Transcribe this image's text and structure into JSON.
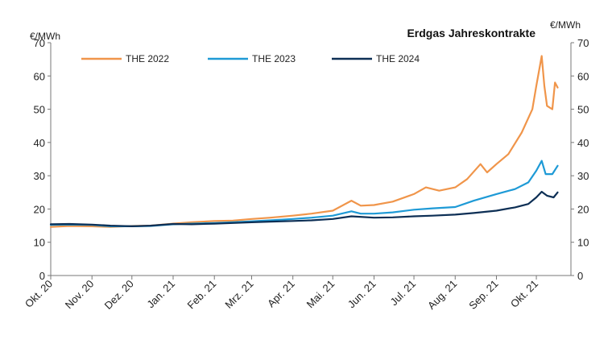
{
  "chart_data": {
    "type": "line",
    "title": "Erdgas Jahreskontrakte",
    "ylabel_left": "€/MWh",
    "ylabel_right": "€/MWh",
    "ylim": [
      0,
      70
    ],
    "yticks": [
      0,
      10,
      20,
      30,
      40,
      50,
      60,
      70
    ],
    "xlim": [
      "2020-10-01",
      "2021-10-27"
    ],
    "xticks": [
      {
        "date": "2020-10-01",
        "label": "Okt. 20"
      },
      {
        "date": "2020-11-01",
        "label": "Nov. 20"
      },
      {
        "date": "2020-12-01",
        "label": "Dez. 20"
      },
      {
        "date": "2021-01-01",
        "label": "Jan. 21"
      },
      {
        "date": "2021-02-01",
        "label": "Feb. 21"
      },
      {
        "date": "2021-03-01",
        "label": "Mrz. 21"
      },
      {
        "date": "2021-04-01",
        "label": "Apr. 21"
      },
      {
        "date": "2021-05-01",
        "label": "Mai. 21"
      },
      {
        "date": "2021-06-01",
        "label": "Jun. 21"
      },
      {
        "date": "2021-07-01",
        "label": "Jul. 21"
      },
      {
        "date": "2021-08-01",
        "label": "Aug. 21"
      },
      {
        "date": "2021-09-01",
        "label": "Sep. 21"
      },
      {
        "date": "2021-10-01",
        "label": "Okt. 21"
      }
    ],
    "grid": false,
    "legend_position": "top-left",
    "series": [
      {
        "name": "THE 2022",
        "color": "#F0954A",
        "points": [
          [
            "2020-10-01",
            14.6
          ],
          [
            "2020-10-15",
            14.9
          ],
          [
            "2020-11-01",
            14.8
          ],
          [
            "2020-11-15",
            14.6
          ],
          [
            "2020-12-01",
            14.9
          ],
          [
            "2020-12-15",
            15.0
          ],
          [
            "2021-01-01",
            15.6
          ],
          [
            "2021-01-15",
            16.0
          ],
          [
            "2021-02-01",
            16.4
          ],
          [
            "2021-02-15",
            16.5
          ],
          [
            "2021-03-01",
            17.0
          ],
          [
            "2021-03-15",
            17.4
          ],
          [
            "2021-04-01",
            18.0
          ],
          [
            "2021-04-15",
            18.6
          ],
          [
            "2021-05-01",
            19.5
          ],
          [
            "2021-05-15",
            22.5
          ],
          [
            "2021-05-22",
            21.0
          ],
          [
            "2021-06-01",
            21.2
          ],
          [
            "2021-06-15",
            22.2
          ],
          [
            "2021-07-01",
            24.5
          ],
          [
            "2021-07-10",
            26.5
          ],
          [
            "2021-07-20",
            25.5
          ],
          [
            "2021-08-01",
            26.5
          ],
          [
            "2021-08-10",
            29.0
          ],
          [
            "2021-08-20",
            33.5
          ],
          [
            "2021-08-25",
            31.0
          ],
          [
            "2021-09-01",
            33.5
          ],
          [
            "2021-09-10",
            36.5
          ],
          [
            "2021-09-20",
            43.0
          ],
          [
            "2021-09-28",
            50.0
          ],
          [
            "2021-10-01",
            57.0
          ],
          [
            "2021-10-05",
            66.0
          ],
          [
            "2021-10-07",
            57.0
          ],
          [
            "2021-10-09",
            51.0
          ],
          [
            "2021-10-13",
            50.0
          ],
          [
            "2021-10-15",
            58.0
          ],
          [
            "2021-10-17",
            56.5
          ]
        ]
      },
      {
        "name": "THE 2023",
        "color": "#1E9AD6",
        "points": [
          [
            "2020-10-01",
            15.2
          ],
          [
            "2020-10-15",
            15.3
          ],
          [
            "2020-11-01",
            15.2
          ],
          [
            "2020-11-15",
            14.8
          ],
          [
            "2020-12-01",
            14.8
          ],
          [
            "2020-12-15",
            14.9
          ],
          [
            "2021-01-01",
            15.4
          ],
          [
            "2021-01-15",
            15.6
          ],
          [
            "2021-02-01",
            15.8
          ],
          [
            "2021-02-15",
            16.0
          ],
          [
            "2021-03-01",
            16.3
          ],
          [
            "2021-03-15",
            16.6
          ],
          [
            "2021-04-01",
            17.0
          ],
          [
            "2021-04-15",
            17.4
          ],
          [
            "2021-05-01",
            18.0
          ],
          [
            "2021-05-15",
            19.3
          ],
          [
            "2021-05-22",
            18.6
          ],
          [
            "2021-06-01",
            18.6
          ],
          [
            "2021-06-15",
            19.0
          ],
          [
            "2021-07-01",
            19.8
          ],
          [
            "2021-07-15",
            20.2
          ],
          [
            "2021-08-01",
            20.6
          ],
          [
            "2021-08-15",
            22.5
          ],
          [
            "2021-09-01",
            24.5
          ],
          [
            "2021-09-15",
            26.0
          ],
          [
            "2021-09-25",
            28.0
          ],
          [
            "2021-10-01",
            31.5
          ],
          [
            "2021-10-05",
            34.5
          ],
          [
            "2021-10-08",
            30.5
          ],
          [
            "2021-10-13",
            30.5
          ],
          [
            "2021-10-17",
            33.0
          ]
        ]
      },
      {
        "name": "THE 2024",
        "color": "#0D2F55",
        "points": [
          [
            "2020-10-01",
            15.4
          ],
          [
            "2020-10-15",
            15.5
          ],
          [
            "2020-11-01",
            15.3
          ],
          [
            "2020-11-15",
            15.0
          ],
          [
            "2020-12-01",
            14.8
          ],
          [
            "2020-12-15",
            15.0
          ],
          [
            "2021-01-01",
            15.5
          ],
          [
            "2021-01-15",
            15.4
          ],
          [
            "2021-02-01",
            15.6
          ],
          [
            "2021-02-15",
            15.8
          ],
          [
            "2021-03-01",
            16.0
          ],
          [
            "2021-03-15",
            16.2
          ],
          [
            "2021-04-01",
            16.4
          ],
          [
            "2021-04-15",
            16.6
          ],
          [
            "2021-05-01",
            17.0
          ],
          [
            "2021-05-15",
            17.8
          ],
          [
            "2021-06-01",
            17.4
          ],
          [
            "2021-06-15",
            17.5
          ],
          [
            "2021-07-01",
            17.8
          ],
          [
            "2021-07-15",
            18.0
          ],
          [
            "2021-08-01",
            18.3
          ],
          [
            "2021-08-15",
            18.8
          ],
          [
            "2021-09-01",
            19.5
          ],
          [
            "2021-09-15",
            20.5
          ],
          [
            "2021-09-25",
            21.5
          ],
          [
            "2021-10-01",
            23.5
          ],
          [
            "2021-10-05",
            25.2
          ],
          [
            "2021-10-09",
            24.0
          ],
          [
            "2021-10-14",
            23.5
          ],
          [
            "2021-10-17",
            25.0
          ]
        ]
      }
    ]
  }
}
